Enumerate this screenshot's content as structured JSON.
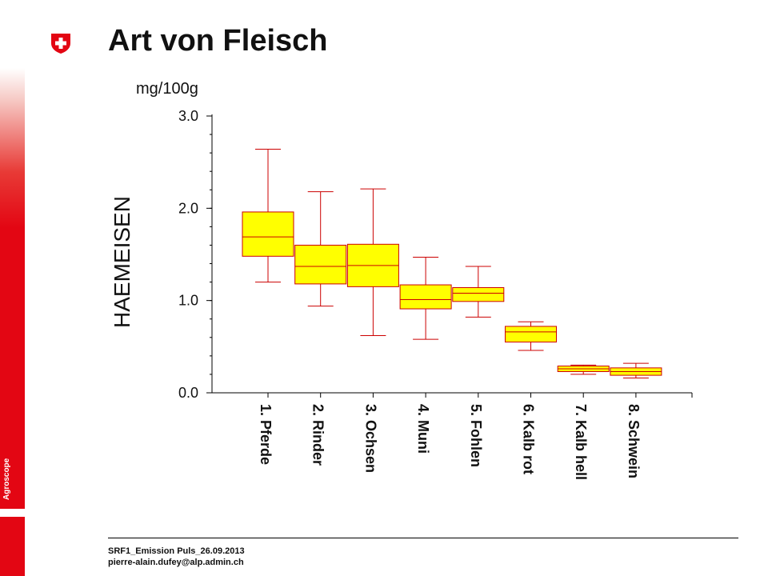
{
  "header": {
    "title": "Art von Fleisch",
    "brand": "Agroscope",
    "logo_icon": "swiss-cross-icon"
  },
  "footer": {
    "line1": "SRF1_Emission Puls_26.09.2013",
    "line2": "pierre-alain.dufey@alp.admin.ch"
  },
  "colors": {
    "accent": "#e30613",
    "box_fill": "#ffff00",
    "box_stroke": "#cc0000"
  },
  "chart_data": {
    "type": "boxplot",
    "title": "",
    "ylabel": "HAEMEISEN",
    "yunit": "mg/100g",
    "ylim": [
      0,
      3
    ],
    "yticks": [
      "0.0",
      "1.0",
      "2.0",
      "3.0"
    ],
    "categories": [
      "1. Pferde",
      "2. Rinder",
      "3. Ochsen",
      "4. Muni",
      "5. Fohlen",
      "6. Kalb rot",
      "7. Kalb hell",
      "8. Schwein"
    ],
    "boxes": [
      {
        "min": 1.2,
        "q1": 1.48,
        "median": 1.69,
        "q3": 1.96,
        "max": 2.64
      },
      {
        "min": 0.94,
        "q1": 1.18,
        "median": 1.37,
        "q3": 1.6,
        "max": 2.18
      },
      {
        "min": 0.62,
        "q1": 1.15,
        "median": 1.38,
        "q3": 1.61,
        "max": 2.21
      },
      {
        "min": 0.58,
        "q1": 0.91,
        "median": 1.01,
        "q3": 1.17,
        "max": 1.47
      },
      {
        "min": 0.82,
        "q1": 0.99,
        "median": 1.08,
        "q3": 1.14,
        "max": 1.37
      },
      {
        "min": 0.46,
        "q1": 0.55,
        "median": 0.66,
        "q3": 0.72,
        "max": 0.77
      },
      {
        "min": 0.2,
        "q1": 0.23,
        "median": 0.26,
        "q3": 0.29,
        "max": 0.3
      },
      {
        "min": 0.16,
        "q1": 0.19,
        "median": 0.23,
        "q3": 0.27,
        "max": 0.32
      }
    ]
  }
}
